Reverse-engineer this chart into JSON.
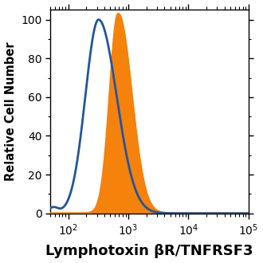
{
  "title": "",
  "xlabel": "Lymphotoxin βR/TNFRSF3",
  "ylabel": "Relative Cell Number",
  "xlim": [
    50,
    100000
  ],
  "ylim": [
    0,
    105
  ],
  "yticks": [
    0,
    20,
    40,
    60,
    80,
    100
  ],
  "blue_color": "#2255a0",
  "orange_color": "#f5820a",
  "orange_fill_color": "#f5820a",
  "blue_peak_x": 320,
  "orange_peak_x": 680,
  "blue_peak_y": 100,
  "orange_peak_y": 103,
  "line_width": 2.0,
  "background_color": "#ffffff",
  "xlabel_fontsize": 13,
  "ylabel_fontsize": 10.5,
  "tick_fontsize": 10
}
